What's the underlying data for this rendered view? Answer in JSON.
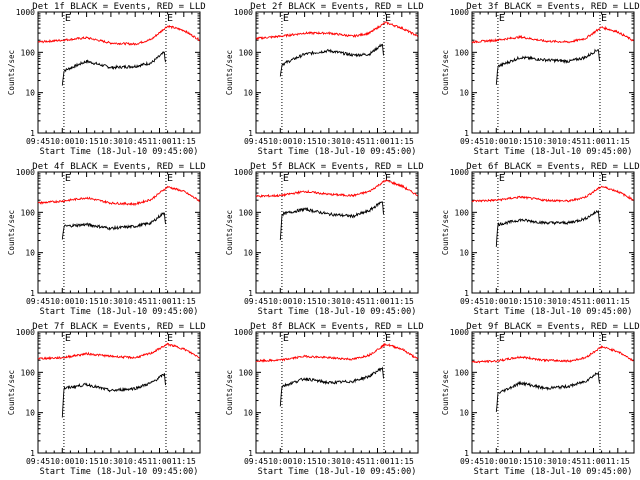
{
  "common": {
    "title_suffix": "BLACK = Events, RED = LLD",
    "xlabel": "Start Time (18-Jul-10 09:45:00)",
    "ylabel": "Counts/sec",
    "x_ticks": [
      "09:45",
      "10:00",
      "10:15",
      "10:30",
      "10:45",
      "11:00",
      "11:15"
    ],
    "y_ticks": [
      "1",
      "10",
      "100",
      "1000"
    ],
    "marker_labels": [
      "E",
      "E"
    ],
    "black_color": "#000000",
    "red_color": "#ff0000"
  },
  "chart_data": [
    {
      "type": "line",
      "title": "Det 1f BLACK = Events, RED = LLD",
      "xlabel": "Start Time (18-Jul-10 09:45:00)",
      "ylabel": "Counts/sec",
      "y_scale": "log",
      "ylim": [
        1,
        1000
      ],
      "xlim": [
        "09:45",
        "11:25"
      ],
      "markers": [
        "10:01",
        "11:04"
      ],
      "series": [
        {
          "name": "Events",
          "color": "#000000",
          "x": [
            "10:00",
            "10:01",
            "10:15",
            "10:30",
            "10:45",
            "10:55",
            "11:03",
            "11:04"
          ],
          "values": [
            15,
            35,
            60,
            42,
            45,
            55,
            100,
            40
          ]
        },
        {
          "name": "LLD",
          "color": "#ff0000",
          "x": [
            "09:45",
            "10:00",
            "10:15",
            "10:30",
            "10:45",
            "10:55",
            "11:05",
            "11:15",
            "11:25"
          ],
          "values": [
            180,
            200,
            230,
            170,
            160,
            210,
            450,
            350,
            200
          ]
        }
      ]
    },
    {
      "type": "line",
      "title": "Det 2f BLACK = Events, RED = LLD",
      "xlabel": "Start Time (18-Jul-10 09:45:00)",
      "ylabel": "Counts/sec",
      "y_scale": "log",
      "ylim": [
        1,
        1000
      ],
      "xlim": [
        "09:45",
        "11:25"
      ],
      "markers": [
        "10:01",
        "11:04"
      ],
      "series": [
        {
          "name": "Events",
          "color": "#000000",
          "x": [
            "10:00",
            "10:01",
            "10:15",
            "10:30",
            "10:45",
            "10:55",
            "11:03",
            "11:04"
          ],
          "values": [
            25,
            50,
            90,
            110,
            85,
            90,
            160,
            60
          ]
        },
        {
          "name": "LLD",
          "color": "#ff0000",
          "x": [
            "09:45",
            "10:00",
            "10:15",
            "10:30",
            "10:45",
            "10:55",
            "11:05",
            "11:15",
            "11:25"
          ],
          "values": [
            220,
            250,
            300,
            300,
            250,
            300,
            550,
            400,
            250
          ]
        }
      ]
    },
    {
      "type": "line",
      "title": "Det 3f BLACK = Events, RED = LLD",
      "xlabel": "Start Time (18-Jul-10 09:45:00)",
      "ylabel": "Counts/sec",
      "y_scale": "log",
      "ylim": [
        1,
        1000
      ],
      "xlim": [
        "09:45",
        "11:25"
      ],
      "markers": [
        "10:01",
        "11:04"
      ],
      "series": [
        {
          "name": "Events",
          "color": "#000000",
          "x": [
            "10:00",
            "10:01",
            "10:15",
            "10:30",
            "10:45",
            "10:55",
            "11:03",
            "11:04"
          ],
          "values": [
            15,
            45,
            75,
            65,
            60,
            75,
            120,
            45
          ]
        },
        {
          "name": "LLD",
          "color": "#ff0000",
          "x": [
            "09:45",
            "10:00",
            "10:15",
            "10:30",
            "10:45",
            "10:55",
            "11:05",
            "11:15",
            "11:25"
          ],
          "values": [
            180,
            200,
            240,
            190,
            180,
            220,
            420,
            320,
            190
          ]
        }
      ]
    },
    {
      "type": "line",
      "title": "Det 4f BLACK = Events, RED = LLD",
      "xlabel": "Start Time (18-Jul-10 09:45:00)",
      "ylabel": "Counts/sec",
      "y_scale": "log",
      "ylim": [
        1,
        1000
      ],
      "xlim": [
        "09:45",
        "11:25"
      ],
      "markers": [
        "10:01",
        "11:04"
      ],
      "series": [
        {
          "name": "Events",
          "color": "#000000",
          "x": [
            "10:00",
            "10:01",
            "10:15",
            "10:30",
            "10:45",
            "10:55",
            "11:03",
            "11:04"
          ],
          "values": [
            20,
            45,
            50,
            40,
            45,
            55,
            100,
            40
          ]
        },
        {
          "name": "LLD",
          "color": "#ff0000",
          "x": [
            "09:45",
            "10:00",
            "10:15",
            "10:30",
            "10:45",
            "10:55",
            "11:05",
            "11:15",
            "11:25"
          ],
          "values": [
            170,
            190,
            230,
            170,
            160,
            210,
            430,
            330,
            190
          ]
        }
      ]
    },
    {
      "type": "line",
      "title": "Det 5f BLACK = Events, RED = LLD",
      "xlabel": "Start Time (18-Jul-10 09:45:00)",
      "ylabel": "Counts/sec",
      "y_scale": "log",
      "ylim": [
        1,
        1000
      ],
      "xlim": [
        "09:45",
        "11:25"
      ],
      "markers": [
        "10:01",
        "11:04"
      ],
      "series": [
        {
          "name": "Events",
          "color": "#000000",
          "x": [
            "10:00",
            "10:01",
            "10:15",
            "10:30",
            "10:45",
            "10:55",
            "11:03",
            "11:04"
          ],
          "values": [
            20,
            90,
            120,
            90,
            80,
            110,
            190,
            70
          ]
        },
        {
          "name": "LLD",
          "color": "#ff0000",
          "x": [
            "09:45",
            "10:00",
            "10:15",
            "10:30",
            "10:45",
            "10:55",
            "11:05",
            "11:15",
            "11:25"
          ],
          "values": [
            250,
            260,
            330,
            280,
            260,
            330,
            620,
            450,
            260
          ]
        }
      ]
    },
    {
      "type": "line",
      "title": "Det 6f BLACK = Events, RED = LLD",
      "xlabel": "Start Time (18-Jul-10 09:45:00)",
      "ylabel": "Counts/sec",
      "y_scale": "log",
      "ylim": [
        1,
        1000
      ],
      "xlim": [
        "09:45",
        "11:25"
      ],
      "markers": [
        "10:01",
        "11:04"
      ],
      "series": [
        {
          "name": "Events",
          "color": "#000000",
          "x": [
            "10:00",
            "10:01",
            "10:15",
            "10:30",
            "10:45",
            "10:55",
            "11:03",
            "11:04"
          ],
          "values": [
            15,
            50,
            65,
            55,
            55,
            70,
            110,
            45
          ]
        },
        {
          "name": "LLD",
          "color": "#ff0000",
          "x": [
            "09:45",
            "10:00",
            "10:15",
            "10:30",
            "10:45",
            "10:55",
            "11:05",
            "11:15",
            "11:25"
          ],
          "values": [
            190,
            200,
            240,
            200,
            190,
            240,
            440,
            330,
            200
          ]
        }
      ]
    },
    {
      "type": "line",
      "title": "Det 7f BLACK = Events, RED = LLD",
      "xlabel": "Start Time (18-Jul-10 09:45:00)",
      "ylabel": "Counts/sec",
      "y_scale": "log",
      "ylim": [
        1,
        1000
      ],
      "xlim": [
        "09:45",
        "11:25"
      ],
      "markers": [
        "10:01",
        "11:04"
      ],
      "series": [
        {
          "name": "Events",
          "color": "#000000",
          "x": [
            "10:00",
            "10:01",
            "10:15",
            "10:30",
            "10:45",
            "10:55",
            "11:03",
            "11:04"
          ],
          "values": [
            8,
            40,
            50,
            35,
            40,
            55,
            90,
            40
          ]
        },
        {
          "name": "LLD",
          "color": "#ff0000",
          "x": [
            "09:45",
            "10:00",
            "10:15",
            "10:30",
            "10:45",
            "10:55",
            "11:05",
            "11:15",
            "11:25"
          ],
          "values": [
            220,
            230,
            290,
            250,
            230,
            300,
            500,
            380,
            230
          ]
        }
      ]
    },
    {
      "type": "line",
      "title": "Det 8f BLACK = Events, RED = LLD",
      "xlabel": "Start Time (18-Jul-10 09:45:00)",
      "ylabel": "Counts/sec",
      "y_scale": "log",
      "ylim": [
        1,
        1000
      ],
      "xlim": [
        "09:45",
        "11:25"
      ],
      "markers": [
        "10:01",
        "11:04"
      ],
      "series": [
        {
          "name": "Events",
          "color": "#000000",
          "x": [
            "10:00",
            "10:01",
            "10:15",
            "10:30",
            "10:45",
            "10:55",
            "11:03",
            "11:04"
          ],
          "values": [
            15,
            45,
            70,
            55,
            60,
            80,
            130,
            50
          ]
        },
        {
          "name": "LLD",
          "color": "#ff0000",
          "x": [
            "09:45",
            "10:00",
            "10:15",
            "10:30",
            "10:45",
            "10:55",
            "11:05",
            "11:15",
            "11:25"
          ],
          "values": [
            190,
            200,
            250,
            230,
            210,
            270,
            500,
            380,
            210
          ]
        }
      ]
    },
    {
      "type": "line",
      "title": "Det 9f BLACK = Events, RED = LLD",
      "xlabel": "Start Time (18-Jul-10 09:45:00)",
      "ylabel": "Counts/sec",
      "y_scale": "log",
      "ylim": [
        1,
        1000
      ],
      "xlim": [
        "09:45",
        "11:25"
      ],
      "markers": [
        "10:01",
        "11:04"
      ],
      "series": [
        {
          "name": "Events",
          "color": "#000000",
          "x": [
            "10:00",
            "10:01",
            "10:15",
            "10:30",
            "10:45",
            "10:55",
            "11:03",
            "11:04"
          ],
          "values": [
            10,
            30,
            55,
            40,
            45,
            60,
            100,
            40
          ]
        },
        {
          "name": "LLD",
          "color": "#ff0000",
          "x": [
            "09:45",
            "10:00",
            "10:15",
            "10:30",
            "10:45",
            "10:55",
            "11:05",
            "11:15",
            "11:25"
          ],
          "values": [
            180,
            190,
            240,
            200,
            190,
            230,
            430,
            330,
            190
          ]
        }
      ]
    }
  ]
}
